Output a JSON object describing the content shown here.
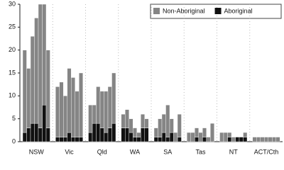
{
  "chart_data": {
    "type": "bar",
    "stacked": true,
    "categories": [
      null,
      null,
      null,
      "NSW",
      null,
      null,
      null,
      null,
      null,
      null,
      "Vic",
      null,
      null,
      null,
      null,
      null,
      null,
      "Qld",
      null,
      null,
      null,
      null,
      null,
      null,
      "WA",
      null,
      null,
      null,
      null,
      null,
      null,
      "SA",
      null,
      null,
      null,
      null,
      null,
      null,
      "Tas",
      null,
      null,
      null,
      null,
      null,
      null,
      "NT",
      null,
      null,
      null,
      null,
      null,
      null,
      "ACT/Cth",
      null,
      null,
      null
    ],
    "series": [
      {
        "name": "Non-Aboriginal",
        "color": "#858585",
        "values": [
          18,
          13,
          19,
          23,
          27,
          22,
          17,
          11,
          12,
          9,
          14,
          13,
          10,
          14,
          6,
          4,
          8,
          8,
          9,
          9,
          11,
          3,
          4,
          3,
          2,
          1,
          3,
          2,
          2,
          4,
          4,
          7,
          3,
          2,
          5,
          2,
          2,
          2,
          2,
          2,
          1,
          4,
          2,
          2,
          1,
          1,
          0,
          0,
          1,
          1,
          1,
          1,
          1,
          1,
          1,
          1
        ]
      },
      {
        "name": "Aboriginal",
        "color": "#111111",
        "values": [
          2,
          3,
          4,
          4,
          3,
          8,
          3,
          1,
          1,
          1,
          2,
          1,
          1,
          1,
          2,
          4,
          4,
          3,
          2,
          3,
          4,
          3,
          3,
          2,
          1,
          1,
          3,
          3,
          1,
          1,
          2,
          1,
          2,
          0,
          1,
          0,
          0,
          1,
          0,
          1,
          0,
          0,
          0,
          0,
          1,
          0,
          1,
          1,
          1,
          0,
          0,
          0,
          0,
          0,
          0,
          0
        ]
      }
    ],
    "ylim": [
      0,
      30
    ],
    "yticks": [
      0,
      5,
      10,
      15,
      20,
      25,
      30
    ],
    "grid": true,
    "legend": "top-right"
  }
}
